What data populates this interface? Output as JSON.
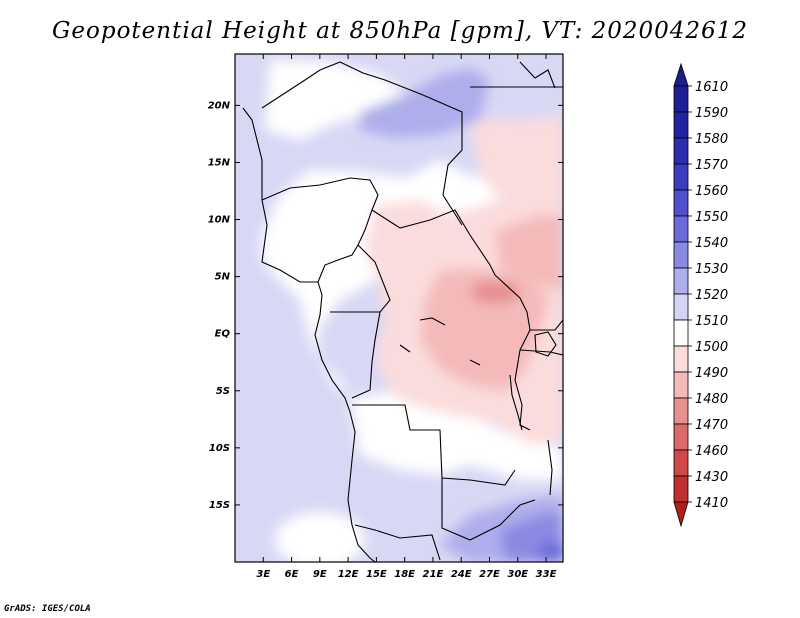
{
  "title": "Geopotential Height at 850hPa [gpm], VT: 2020042612",
  "footer": "GrADS: IGES/COLA",
  "map": {
    "lat_labels": [
      "20N",
      "15N",
      "10N",
      "5N",
      "EQ",
      "5S",
      "10S",
      "15S"
    ],
    "lon_labels": [
      "3E",
      "6E",
      "9E",
      "12E",
      "15E",
      "18E",
      "21E",
      "24E",
      "27E",
      "30E",
      "33E"
    ],
    "lat_values": [
      20,
      15,
      10,
      5,
      0,
      -5,
      -10,
      -15
    ],
    "lon_values": [
      3,
      6,
      9,
      12,
      15,
      18,
      21,
      24,
      27,
      30,
      33
    ],
    "lat_range": [
      -20,
      24.5
    ],
    "lon_range": [
      0,
      34.8
    ]
  },
  "colorbar": {
    "levels": [
      "1610",
      "1590",
      "1580",
      "1570",
      "1560",
      "1550",
      "1540",
      "1530",
      "1520",
      "1510",
      "1500",
      "1490",
      "1480",
      "1470",
      "1460",
      "1430",
      "1410"
    ],
    "colors": [
      "#1e1e96",
      "#23239f",
      "#2d2dae",
      "#3c3cbd",
      "#5050cc",
      "#6a6ad8",
      "#8a8ae3",
      "#aeaeec",
      "#d4d4f4",
      "#ffffff",
      "#fbdcdc",
      "#f4baba",
      "#e79090",
      "#db6a6a",
      "#d04848",
      "#c03030",
      "#b02222"
    ],
    "top_arrow_color": "#1c1c8e",
    "bottom_arrow_color": "#ad1e1e"
  }
}
